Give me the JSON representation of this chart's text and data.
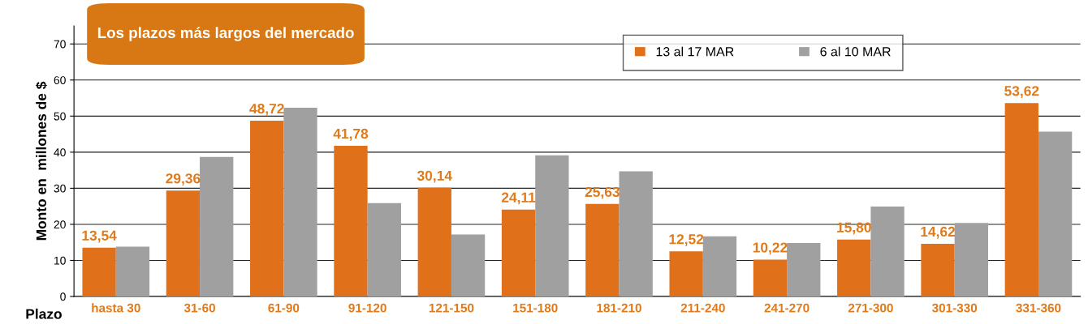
{
  "chart_data": {
    "type": "bar",
    "title": "Los plazos más largos del mercado",
    "xlabel": "Plazo",
    "ylabel": "Monto en  millones de $",
    "categories": [
      "hasta 30",
      "31-60",
      "61-90",
      "91-120",
      "121-150",
      "151-180",
      "181-210",
      "211-240",
      "241-270",
      "271-300",
      "301-330",
      "331-360"
    ],
    "series": [
      {
        "name": "13 al 17 MAR",
        "color": "#e0701a",
        "values": [
          13.54,
          29.36,
          48.72,
          41.78,
          30.14,
          24.11,
          25.63,
          12.52,
          10.22,
          15.8,
          14.62,
          53.62
        ],
        "value_labels": [
          "13,54",
          "29,36",
          "48,72",
          "41,78",
          "30,14",
          "24,11",
          "25,63",
          "12,52",
          "10,22",
          "15,80",
          "14,62",
          "53,62"
        ]
      },
      {
        "name": "6 al 10 MAR",
        "color": "#a0a0a0",
        "values": [
          13.8,
          38.7,
          52.3,
          25.9,
          17.2,
          39.1,
          34.7,
          16.7,
          14.8,
          24.9,
          20.4,
          45.7
        ]
      }
    ],
    "ylim": [
      0,
      75
    ],
    "yticks": [
      0,
      10,
      20,
      30,
      40,
      50,
      60,
      70
    ],
    "grid": "y",
    "legend": "top right"
  }
}
